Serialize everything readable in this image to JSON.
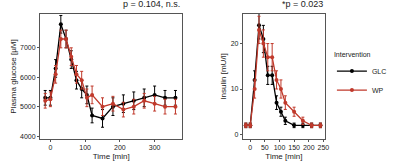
{
  "chart_data": [
    {
      "type": "line",
      "title": "p = 0.104, n.s.",
      "x_label": "Time [min]",
      "y_label": "Plasma glucose [µM]",
      "xlim": [
        -30,
        380
      ],
      "xticks": [
        0,
        100,
        200,
        300
      ],
      "ylim": [
        3900,
        8150
      ],
      "yticks": [
        4000,
        5000,
        6000,
        7000
      ],
      "grid": false,
      "marker": "circle",
      "line_style": "solid",
      "x": [
        -15,
        0,
        15,
        30,
        45,
        60,
        75,
        90,
        105,
        120,
        150,
        180,
        210,
        240,
        270,
        300,
        330,
        360
      ],
      "series": [
        {
          "name": "GLC",
          "color": "#000000",
          "values": [
            5300,
            5300,
            6300,
            7800,
            7300,
            6600,
            5900,
            5600,
            5400,
            4700,
            4600,
            5000,
            5100,
            5200,
            5300,
            5400,
            5300,
            5300
          ],
          "errors": [
            250,
            250,
            300,
            300,
            300,
            300,
            300,
            300,
            300,
            250,
            300,
            300,
            300,
            300,
            300,
            300,
            250,
            250
          ]
        },
        {
          "name": "WP",
          "color": "#c0392b",
          "values": [
            5200,
            5250,
            6100,
            7300,
            7300,
            6700,
            6100,
            5900,
            5300,
            5400,
            5000,
            5100,
            4900,
            5000,
            5200,
            5100,
            5000,
            5000
          ],
          "errors": [
            250,
            250,
            300,
            300,
            300,
            300,
            300,
            300,
            300,
            300,
            300,
            250,
            250,
            250,
            250,
            250,
            250,
            250
          ]
        }
      ]
    },
    {
      "type": "line",
      "title": "*p = 0.023",
      "x_label": "Time [min]",
      "y_label": "Insulin [mU/l]",
      "xlim": [
        -25,
        255
      ],
      "xticks": [
        0,
        50,
        100,
        150,
        200,
        250
      ],
      "ylim": [
        -1,
        26.5
      ],
      "yticks": [
        0,
        10,
        20
      ],
      "grid": false,
      "marker": "circle",
      "line_style": "solid",
      "legend": "right",
      "legend_title": "Intervention",
      "x": [
        -15,
        0,
        15,
        30,
        45,
        60,
        75,
        90,
        105,
        120,
        150,
        180,
        210,
        240
      ],
      "series": [
        {
          "name": "GLC",
          "color": "#000000",
          "values": [
            2,
            2,
            12,
            24,
            21,
            13,
            13,
            7,
            5,
            3,
            2,
            2,
            2,
            2
          ],
          "errors": [
            0.5,
            0.5,
            2,
            3,
            3,
            2,
            2,
            1.5,
            1,
            0.8,
            0.5,
            0.5,
            0.5,
            0.5
          ]
        },
        {
          "name": "WP",
          "color": "#c0392b",
          "values": [
            2,
            2,
            10,
            23,
            20,
            17,
            17,
            12,
            10,
            7,
            5,
            3,
            2,
            2
          ],
          "errors": [
            0.5,
            0.5,
            2,
            3,
            3,
            3,
            3,
            2,
            2,
            1.5,
            1,
            0.8,
            0.5,
            0.5
          ]
        }
      ]
    }
  ]
}
